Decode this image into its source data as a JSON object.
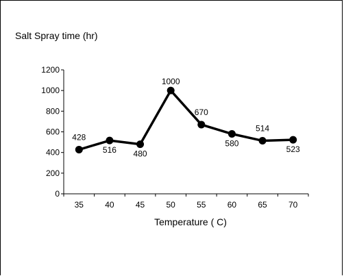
{
  "chart_data": {
    "type": "line",
    "title": "Salt Spray time (hr)",
    "xlabel": "Temperature ( C)",
    "ylabel": "",
    "categories": [
      "35",
      "40",
      "45",
      "50",
      "55",
      "60",
      "65",
      "70"
    ],
    "x": [
      35,
      40,
      45,
      50,
      55,
      60,
      65,
      70
    ],
    "values": [
      428,
      516,
      480,
      1000,
      670,
      580,
      514,
      523
    ],
    "data_labels": [
      "428",
      "516",
      "480",
      "1000",
      "670",
      "580",
      "514",
      "523"
    ],
    "yticks": [
      "0",
      "200",
      "400",
      "600",
      "800",
      "1000",
      "1200"
    ],
    "ylim": [
      0,
      1200
    ],
    "grid": false,
    "legend": "none",
    "line_color": "#000000",
    "marker": "circle"
  }
}
